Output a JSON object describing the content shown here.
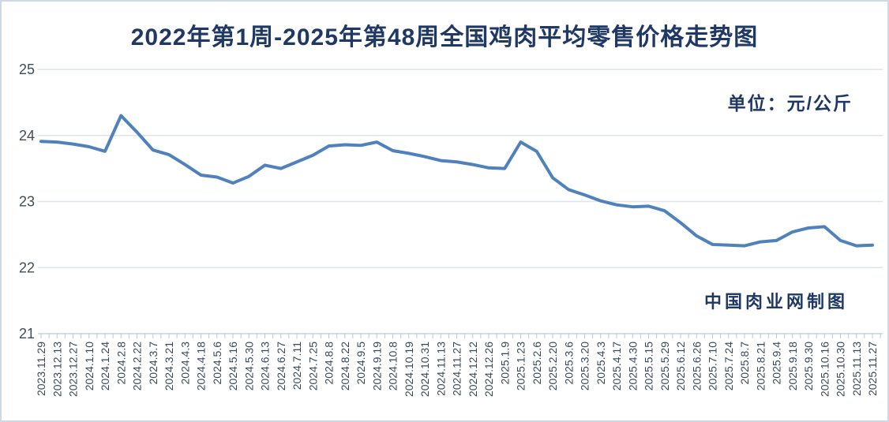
{
  "title": "2022年第1周-2025年第48周全国鸡肉平均零售价格走势图",
  "unit_label": "单位：元/公斤",
  "credit_label": "中国肉业网制图",
  "colors": {
    "title_text": "#1F3864",
    "axis_labels": "#414C59",
    "line": "#4F81BD",
    "gridline": "#DDE4EE",
    "axis_line": "#C7D2E0",
    "tick": "#BCC8D8",
    "border": "#CDD9E7",
    "background": "#FFFFFF"
  },
  "chart_data": {
    "type": "line",
    "title": "2022年第1周-2025年第48周全国鸡肉平均零售价格走势图",
    "xlabel": "",
    "ylabel": "元/公斤",
    "ylim": [
      21,
      25
    ],
    "yticks": [
      21,
      22,
      23,
      24,
      25
    ],
    "grid": true,
    "legend_position": "none",
    "categories": [
      "2023.11.29",
      "2023.12.13",
      "2023.12.27",
      "2024.1.10",
      "2024.1.24",
      "2024.2.8",
      "2024.2.22",
      "2024.3.7",
      "2024.3.21",
      "2024.4.3",
      "2024.4.18",
      "2024.5.6",
      "2024.5.16",
      "2024.5.30",
      "2024.6.13",
      "2024.6.27",
      "2024.7.11",
      "2024.7.25",
      "2024.8.8",
      "2024.8.22",
      "2024.9.5",
      "2024.9.19",
      "2024.10.8",
      "2024.10.19",
      "2024.10.31",
      "2024.11.13",
      "2024.11.27",
      "2024.12.12",
      "2024.12.26",
      "2025.1.9",
      "2025.1.23",
      "2025.2.6",
      "2025.2.20",
      "2025.3.6",
      "2025.3.20",
      "2025.4.3",
      "2025.4.17",
      "2025.4.30",
      "2025.5.15",
      "2025.5.29",
      "2025.6.12",
      "2025.6.26",
      "2025.7.10",
      "2025.7.24",
      "2025.8.7",
      "2025.8.21",
      "2025.9.4",
      "2025.9.18",
      "2025.9.30",
      "2025.10.16",
      "2025.10.30",
      "2025.11.13",
      "2025.11.27"
    ],
    "series": [
      {
        "name": "全国鸡肉平均零售价格",
        "values": [
          23.91,
          23.9,
          23.87,
          23.83,
          23.76,
          24.3,
          24.05,
          23.78,
          23.71,
          23.56,
          23.4,
          23.37,
          23.28,
          23.38,
          23.55,
          23.5,
          23.6,
          23.7,
          23.84,
          23.86,
          23.85,
          23.9,
          23.77,
          23.73,
          23.68,
          23.62,
          23.6,
          23.56,
          23.51,
          23.5,
          23.9,
          23.76,
          23.36,
          23.18,
          23.1,
          23.01,
          22.95,
          22.92,
          22.93,
          22.86,
          22.68,
          22.48,
          22.35,
          22.34,
          22.33,
          22.39,
          22.41,
          22.54,
          22.6,
          22.62,
          22.41,
          22.33,
          22.34
        ]
      }
    ]
  }
}
